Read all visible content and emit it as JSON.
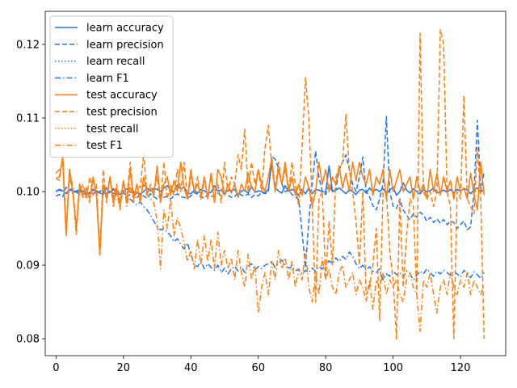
{
  "chart_data": {
    "type": "line",
    "title": "",
    "xlabel": "",
    "ylabel": "",
    "xlim": [
      -3.2,
      133.4
    ],
    "ylim": [
      0.0777,
      0.1245
    ],
    "xticks": [
      0,
      20,
      40,
      60,
      80,
      100,
      120
    ],
    "yticks": [
      0.08,
      0.09,
      0.1,
      0.11,
      0.12
    ],
    "ytick_labels": [
      "0.08",
      "0.09",
      "0.10",
      "0.11",
      "0.12"
    ],
    "grid": false,
    "legend_position": "top-left",
    "colors": {
      "learn": "#1f77f0",
      "test": "#ff7f0e"
    },
    "series": [
      {
        "name": "learn accuracy",
        "group": "learn",
        "dash": "solid",
        "values": [
          0.1,
          0.1003,
          0.1001,
          0.0997,
          0.1002,
          0.1001,
          0.1,
          0.1003,
          0.0996,
          0.0998,
          0.0997,
          0.1003,
          0.1001,
          0.0998,
          0.0996,
          0.1005,
          0.0999,
          0.1003,
          0.1,
          0.0996,
          0.1001,
          0.1004,
          0.0999,
          0.1,
          0.0998,
          0.0997,
          0.1,
          0.1005,
          0.1001,
          0.1004,
          0.1003,
          0.1,
          0.1005,
          0.1008,
          0.1002,
          0.1,
          0.1009,
          0.1004,
          0.1006,
          0.0998,
          0.0997,
          0.1002,
          0.0998,
          0.1003,
          0.1001,
          0.0998,
          0.0999,
          0.1008,
          0.1001,
          0.1002,
          0.0998,
          0.1002,
          0.1001,
          0.1003,
          0.0996,
          0.1001,
          0.1002,
          0.0998,
          0.1007,
          0.0999,
          0.1001,
          0.1,
          0.0998,
          0.1003,
          0.104,
          0.1005,
          0.1001,
          0.0998,
          0.1008,
          0.1,
          0.1003,
          0.1001,
          0.0995,
          0.1003,
          0.0997,
          0.1005,
          0.0997,
          0.1003,
          0.1002,
          0.1,
          0.0999,
          0.1035,
          0.1,
          0.1002,
          0.1005,
          0.1001,
          0.0997,
          0.1003,
          0.1,
          0.0996,
          0.1002,
          0.1003,
          0.0998,
          0.1005,
          0.1,
          0.1003,
          0.1,
          0.1004,
          0.0997,
          0.1002,
          0.1006,
          0.0995,
          0.1,
          0.1012,
          0.1002,
          0.0998,
          0.1004,
          0.1,
          0.0997,
          0.1003,
          0.1,
          0.1001,
          0.1005,
          0.0998,
          0.1,
          0.1002,
          0.0999,
          0.1003,
          0.0998,
          0.1003,
          0.1001,
          0.1004,
          0.1002,
          0.0997,
          0.1003,
          0.1005,
          0.1,
          0.1002
        ]
      },
      {
        "name": "learn precision",
        "group": "learn",
        "dash": "dashed",
        "values": [
          0.0994,
          0.0996,
          0.0993,
          0.1006,
          0.1002,
          0.1004,
          0.0999,
          0.0997,
          0.1001,
          0.0996,
          0.0999,
          0.1003,
          0.0998,
          0.1,
          0.1005,
          0.0997,
          0.0999,
          0.1004,
          0.0996,
          0.1001,
          0.0998,
          0.0993,
          0.0996,
          0.0999,
          0.0992,
          0.0996,
          0.0994,
          0.0991,
          0.0997,
          0.0993,
          0.099,
          0.0996,
          0.0992,
          0.0994,
          0.099,
          0.0994,
          0.0997,
          0.0993,
          0.0992,
          0.0991,
          0.0994,
          0.0999,
          0.0996,
          0.0993,
          0.0991,
          0.0996,
          0.0993,
          0.0995,
          0.0998,
          0.0994,
          0.0999,
          0.0995,
          0.0992,
          0.0993,
          0.0999,
          0.0995,
          0.0994,
          0.0997,
          0.0992,
          0.0996,
          0.0994,
          0.0999,
          0.0997,
          0.1,
          0.1048,
          0.1044,
          0.1032,
          0.101,
          0.1,
          0.1002,
          0.0996,
          0.0993,
          0.0989,
          0.0945,
          0.0897,
          0.096,
          0.101,
          0.1055,
          0.102,
          0.1,
          0.0996,
          0.101,
          0.1,
          0.1003,
          0.103,
          0.104,
          0.105,
          0.103,
          0.101,
          0.1,
          0.102,
          0.1047,
          0.1,
          0.0993,
          0.0981,
          0.0975,
          0.099,
          0.101,
          0.1102,
          0.1,
          0.098,
          0.0977,
          0.099,
          0.0975,
          0.0968,
          0.0962,
          0.097,
          0.0965,
          0.0972,
          0.0968,
          0.096,
          0.0965,
          0.0958,
          0.0963,
          0.0957,
          0.0962,
          0.0955,
          0.096,
          0.0958,
          0.095,
          0.0955,
          0.096,
          0.0948,
          0.0952,
          0.1,
          0.1097,
          0.1,
          0.1027
        ]
      },
      {
        "name": "learn recall",
        "group": "learn",
        "dash": "dotted",
        "values": [
          0.1,
          0.1003,
          0.1001,
          0.0997,
          0.1002,
          0.1001,
          0.1,
          0.1003,
          0.0996,
          0.0998,
          0.0997,
          0.1003,
          0.1001,
          0.0998,
          0.0996,
          0.1005,
          0.0999,
          0.1003,
          0.1,
          0.0996,
          0.1001,
          0.1004,
          0.0999,
          0.1,
          0.0998,
          0.0997,
          0.1,
          0.1005,
          0.1001,
          0.1004,
          0.1003,
          0.1,
          0.1005,
          0.1008,
          0.1002,
          0.1,
          0.1009,
          0.1004,
          0.1006,
          0.0998,
          0.0997,
          0.1002,
          0.0998,
          0.1003,
          0.1001,
          0.0998,
          0.0999,
          0.1008,
          0.1001,
          0.1002,
          0.0998,
          0.1002,
          0.1001,
          0.1003,
          0.0996,
          0.1001,
          0.1002,
          0.0998,
          0.1007,
          0.0999,
          0.1001,
          0.1,
          0.0998,
          0.1003,
          0.104,
          0.1005,
          0.1001,
          0.0998,
          0.1008,
          0.1,
          0.1003,
          0.1001,
          0.0995,
          0.1003,
          0.0997,
          0.1005,
          0.0997,
          0.1003,
          0.1002,
          0.1,
          0.0999,
          0.1035,
          0.1,
          0.1002,
          0.1005,
          0.1001,
          0.0997,
          0.1003,
          0.1,
          0.0996,
          0.1002,
          0.1003,
          0.0998,
          0.1005,
          0.1,
          0.1003,
          0.1,
          0.1004,
          0.0997,
          0.1002,
          0.1006,
          0.0995,
          0.1,
          0.1012,
          0.1002,
          0.0998,
          0.1004,
          0.1,
          0.0997,
          0.1003,
          0.1,
          0.1001,
          0.1005,
          0.0998,
          0.1,
          0.1002,
          0.0999,
          0.1003,
          0.0998,
          0.1003,
          0.1001,
          0.1004,
          0.1002,
          0.0997,
          0.1003,
          0.1005,
          0.1,
          0.1002
        ]
      },
      {
        "name": "learn F1",
        "group": "learn",
        "dash": "dashdot",
        "values": [
          0.1001,
          0.1002,
          0.1,
          0.0998,
          0.1003,
          0.0997,
          0.1001,
          0.0999,
          0.1002,
          0.0997,
          0.1,
          0.0996,
          0.1002,
          0.0999,
          0.1001,
          0.0998,
          0.1002,
          0.0997,
          0.0999,
          0.1001,
          0.0998,
          0.0995,
          0.099,
          0.0985,
          0.0982,
          0.0986,
          0.098,
          0.0975,
          0.0968,
          0.096,
          0.0952,
          0.0948,
          0.095,
          0.0945,
          0.094,
          0.0932,
          0.0936,
          0.0928,
          0.0922,
          0.093,
          0.0915,
          0.09,
          0.0898,
          0.0905,
          0.0895,
          0.0902,
          0.0897,
          0.0893,
          0.09,
          0.089,
          0.0896,
          0.0888,
          0.0895,
          0.0899,
          0.0892,
          0.0897,
          0.089,
          0.0898,
          0.0902,
          0.0893,
          0.0898,
          0.0895,
          0.09,
          0.0902,
          0.0905,
          0.0897,
          0.0903,
          0.0907,
          0.09,
          0.0896,
          0.0898,
          0.0892,
          0.0895,
          0.0888,
          0.0893,
          0.089,
          0.0896,
          0.0892,
          0.0898,
          0.0895,
          0.09,
          0.0906,
          0.0902,
          0.091,
          0.0905,
          0.0912,
          0.0908,
          0.0918,
          0.0912,
          0.0902,
          0.0895,
          0.09,
          0.0893,
          0.0898,
          0.0892,
          0.089,
          0.0895,
          0.088,
          0.0888,
          0.0885,
          0.0892,
          0.0887,
          0.089,
          0.0884,
          0.0892,
          0.0888,
          0.088,
          0.0886,
          0.0892,
          0.0888,
          0.0895,
          0.089,
          0.0885,
          0.0892,
          0.0888,
          0.0893,
          0.089,
          0.0886,
          0.0892,
          0.0888,
          0.0884,
          0.0893,
          0.0889,
          0.0883,
          0.0891,
          0.0887,
          0.0882,
          0.089
        ]
      },
      {
        "name": "test accuracy",
        "group": "test",
        "dash": "solid",
        "values": [
          0.1018,
          0.102,
          0.1045,
          0.094,
          0.103,
          0.1,
          0.095,
          0.101,
          0.0995,
          0.1005,
          0.099,
          0.102,
          0.0995,
          0.0915,
          0.101,
          0.099,
          0.102,
          0.0985,
          0.1005,
          0.098,
          0.1015,
          0.0985,
          0.103,
          0.099,
          0.101,
          0.0985,
          0.102,
          0.1,
          0.1005,
          0.0995,
          0.1035,
          0.0985,
          0.101,
          0.102,
          0.0995,
          0.1015,
          0.1,
          0.104,
          0.1005,
          0.099,
          0.103,
          0.1,
          0.101,
          0.0995,
          0.102,
          0.099,
          0.1025,
          0.0985,
          0.103,
          0.102,
          0.0995,
          0.101,
          0.0998,
          0.101,
          0.0992,
          0.101,
          0.1,
          0.1025,
          0.1005,
          0.1,
          0.103,
          0.101,
          0.1,
          0.102,
          0.1045,
          0.1,
          0.103,
          0.101,
          0.104,
          0.1,
          0.102,
          0.0995,
          0.101,
          0.0995,
          0.102,
          0.1005,
          0.098,
          0.1,
          0.104,
          0.101,
          0.103,
          0.1,
          0.102,
          0.101,
          0.1035,
          0.1005,
          0.1025,
          0.1,
          0.104,
          0.1015,
          0.104,
          0.102,
          0.101,
          0.103,
          0.0995,
          0.102,
          0.101,
          0.103,
          0.099,
          0.103,
          0.1,
          0.1015,
          0.103,
          0.1,
          0.101,
          0.102,
          0.099,
          0.102,
          0.1,
          0.101,
          0.099,
          0.103,
          0.1,
          0.1025,
          0.0995,
          0.102,
          0.1,
          0.1015,
          0.099,
          0.102,
          0.1,
          0.1005,
          0.099,
          0.1025,
          0.0995,
          0.0975,
          0.104,
          0.0995
        ]
      },
      {
        "name": "test precision",
        "group": "test",
        "dash": "dashed",
        "values": [
          0.1018,
          0.1015,
          0.105,
          0.0945,
          0.103,
          0.1005,
          0.095,
          0.1,
          0.101,
          0.099,
          0.102,
          0.0995,
          0.101,
          0.0912,
          0.103,
          0.0985,
          0.102,
          0.099,
          0.101,
          0.0985,
          0.1015,
          0.099,
          0.104,
          0.099,
          0.101,
          0.1005,
          0.1052,
          0.0995,
          0.101,
          0.1,
          0.102,
          0.0985,
          0.104,
          0.099,
          0.101,
          0.0995,
          0.103,
          0.1,
          0.104,
          0.099,
          0.102,
          0.1,
          0.102,
          0.099,
          0.1015,
          0.0995,
          0.102,
          0.1,
          0.101,
          0.0985,
          0.104,
          0.1,
          0.102,
          0.101,
          0.105,
          0.103,
          0.1085,
          0.1,
          0.104,
          0.101,
          0.103,
          0.1,
          0.106,
          0.109,
          0.1035,
          0.1,
          0.104,
          0.101,
          0.103,
          0.1,
          0.104,
          0.101,
          0.098,
          0.106,
          0.1155,
          0.11,
          0.098,
          0.085,
          0.099,
          0.1,
          0.088,
          0.096,
          0.09,
          0.102,
          0.103,
          0.104,
          0.1105,
          0.103,
          0.1,
          0.096,
          0.09,
          0.1,
          0.086,
          0.087,
          0.09,
          0.095,
          0.0825,
          0.1,
          0.1,
          0.092,
          0.088,
          0.08,
          0.099,
          0.087,
          0.094,
          0.099,
          0.098,
          0.086,
          0.1215,
          0.1,
          0.099,
          0.1,
          0.098,
          0.1,
          0.122,
          0.12,
          0.1,
          0.098,
          0.08,
          0.1,
          0.099,
          0.113,
          0.099,
          0.098,
          0.097,
          0.106,
          0.099,
          0.08
        ]
      },
      {
        "name": "test recall",
        "group": "test",
        "dash": "dotted",
        "values": [
          0.1018,
          0.102,
          0.1045,
          0.094,
          0.103,
          0.1,
          0.095,
          0.101,
          0.0995,
          0.1005,
          0.099,
          0.102,
          0.0995,
          0.0915,
          0.101,
          0.099,
          0.102,
          0.0985,
          0.1005,
          0.098,
          0.1015,
          0.0985,
          0.103,
          0.099,
          0.101,
          0.0985,
          0.102,
          0.1,
          0.1005,
          0.0995,
          0.1035,
          0.0985,
          0.101,
          0.102,
          0.0995,
          0.1015,
          0.1,
          0.104,
          0.1005,
          0.099,
          0.103,
          0.1,
          0.101,
          0.0995,
          0.102,
          0.099,
          0.1025,
          0.0985,
          0.103,
          0.102,
          0.0995,
          0.101,
          0.0998,
          0.101,
          0.0992,
          0.101,
          0.1,
          0.1025,
          0.1005,
          0.1,
          0.103,
          0.101,
          0.1,
          0.102,
          0.1045,
          0.1,
          0.103,
          0.101,
          0.104,
          0.1,
          0.102,
          0.0995,
          0.101,
          0.0995,
          0.102,
          0.1005,
          0.098,
          0.1,
          0.104,
          0.101,
          0.103,
          0.1,
          0.102,
          0.101,
          0.1035,
          0.1005,
          0.1025,
          0.1,
          0.104,
          0.1015,
          0.104,
          0.102,
          0.101,
          0.103,
          0.0995,
          0.102,
          0.101,
          0.103,
          0.099,
          0.103,
          0.1,
          0.1015,
          0.103,
          0.1,
          0.101,
          0.102,
          0.099,
          0.102,
          0.1,
          0.101,
          0.099,
          0.103,
          0.1,
          0.1025,
          0.0995,
          0.102,
          0.1,
          0.1015,
          0.099,
          0.102,
          0.1,
          0.1005,
          0.099,
          0.1025,
          0.0995,
          0.0975,
          0.104,
          0.0995
        ]
      },
      {
        "name": "test F1",
        "group": "test",
        "dash": "dashdot",
        "values": [
          0.1025,
          0.103,
          0.104,
          0.0945,
          0.102,
          0.1,
          0.094,
          0.101,
          0.099,
          0.1,
          0.0985,
          0.1015,
          0.0995,
          0.0915,
          0.101,
          0.099,
          0.102,
          0.098,
          0.1,
          0.0975,
          0.1015,
          0.098,
          0.101,
          0.0985,
          0.1,
          0.099,
          0.101,
          0.0995,
          0.099,
          0.0985,
          0.096,
          0.0895,
          0.0975,
          0.095,
          0.099,
          0.094,
          0.0965,
          0.095,
          0.093,
          0.0905,
          0.092,
          0.0895,
          0.0935,
          0.09,
          0.094,
          0.0905,
          0.0935,
          0.0895,
          0.0945,
          0.09,
          0.092,
          0.0895,
          0.091,
          0.088,
          0.092,
          0.089,
          0.087,
          0.0915,
          0.088,
          0.09,
          0.0835,
          0.087,
          0.089,
          0.086,
          0.0905,
          0.088,
          0.092,
          0.0895,
          0.091,
          0.088,
          0.0905,
          0.087,
          0.0895,
          0.088,
          0.092,
          0.087,
          0.085,
          0.089,
          0.086,
          0.091,
          0.088,
          0.0895,
          0.087,
          0.086,
          0.089,
          0.09,
          0.087,
          0.088,
          0.089,
          0.086,
          0.088,
          0.087,
          0.085,
          0.088,
          0.084,
          0.088,
          0.087,
          0.089,
          0.086,
          0.088,
          0.087,
          0.088,
          0.086,
          0.085,
          0.088,
          0.089,
          0.087,
          0.086,
          0.081,
          0.088,
          0.087,
          0.089,
          0.086,
          0.0835,
          0.087,
          0.088,
          0.086,
          0.089,
          0.087,
          0.086,
          0.088,
          0.087,
          0.089,
          0.086,
          0.088,
          0.087,
          0.086,
          0.0875
        ]
      }
    ]
  }
}
